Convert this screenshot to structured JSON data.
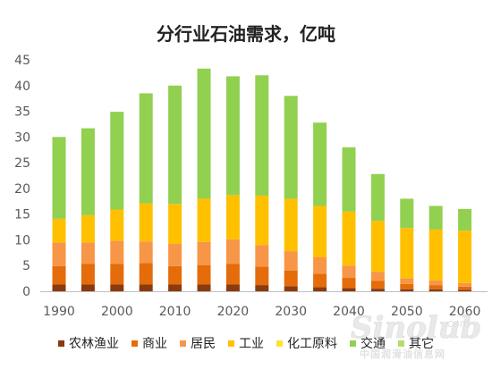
{
  "chart_data": {
    "type": "bar",
    "stacked": true,
    "title": "分行业石油需求，亿吨",
    "xlabel": "",
    "ylabel": "",
    "ylim": [
      0,
      45
    ],
    "yticks": [
      0,
      5,
      10,
      15,
      20,
      25,
      30,
      35,
      40,
      45
    ],
    "grid": false,
    "legend_position": "bottom",
    "categories": [
      "1990",
      "1995",
      "2000",
      "2005",
      "2010",
      "2015",
      "2020",
      "2025",
      "2030",
      "2035",
      "2040",
      "2045",
      "2050",
      "2055",
      "2060"
    ],
    "x_tick_labels": [
      "1990",
      "2000",
      "2010",
      "2020",
      "2030",
      "2040",
      "2050",
      "2060"
    ],
    "series": [
      {
        "name": "农林渔业",
        "color": "#8B3A0F",
        "values": [
          1.3,
          1.3,
          1.3,
          1.3,
          1.3,
          1.3,
          1.3,
          1.2,
          1.0,
          0.8,
          0.6,
          0.5,
          0.4,
          0.4,
          0.3
        ]
      },
      {
        "name": "商业",
        "color": "#E46C0A",
        "values": [
          3.6,
          4.0,
          4.0,
          4.2,
          3.6,
          3.8,
          4.0,
          3.6,
          3.0,
          2.6,
          2.0,
          1.5,
          1.0,
          0.8,
          0.6
        ]
      },
      {
        "name": "居民",
        "color": "#F79646",
        "values": [
          4.6,
          4.2,
          4.5,
          4.2,
          4.3,
          4.5,
          4.8,
          4.2,
          3.8,
          3.2,
          2.4,
          1.8,
          1.1,
          0.9,
          0.7
        ]
      },
      {
        "name": "工业",
        "color": "#FFC000",
        "values": [
          4.6,
          5.3,
          6.1,
          7.4,
          7.8,
          8.4,
          8.6,
          9.6,
          10.2,
          10.0,
          10.5,
          9.9,
          9.8,
          9.9,
          10.2
        ]
      },
      {
        "name": "化工原料",
        "color": "#FFE12E",
        "values": [
          0,
          0,
          0,
          0,
          0,
          0,
          0,
          0,
          0,
          0,
          0,
          0,
          0,
          0,
          0
        ]
      },
      {
        "name": "交通",
        "color": "#92D050",
        "values": [
          15.9,
          16.9,
          19.0,
          21.4,
          23.0,
          25.3,
          23.1,
          23.4,
          20.0,
          16.2,
          12.5,
          9.1,
          5.7,
          4.6,
          4.2
        ]
      },
      {
        "name": "其它",
        "color": "#B3DE6A",
        "values": [
          0,
          0,
          0,
          0,
          0,
          0,
          0,
          0,
          0,
          0,
          0,
          0,
          0,
          0,
          0
        ]
      }
    ]
  },
  "watermark": {
    "logo": "Sinolub",
    "domain": ".com",
    "text_cn": "中国润滑油信息网"
  }
}
